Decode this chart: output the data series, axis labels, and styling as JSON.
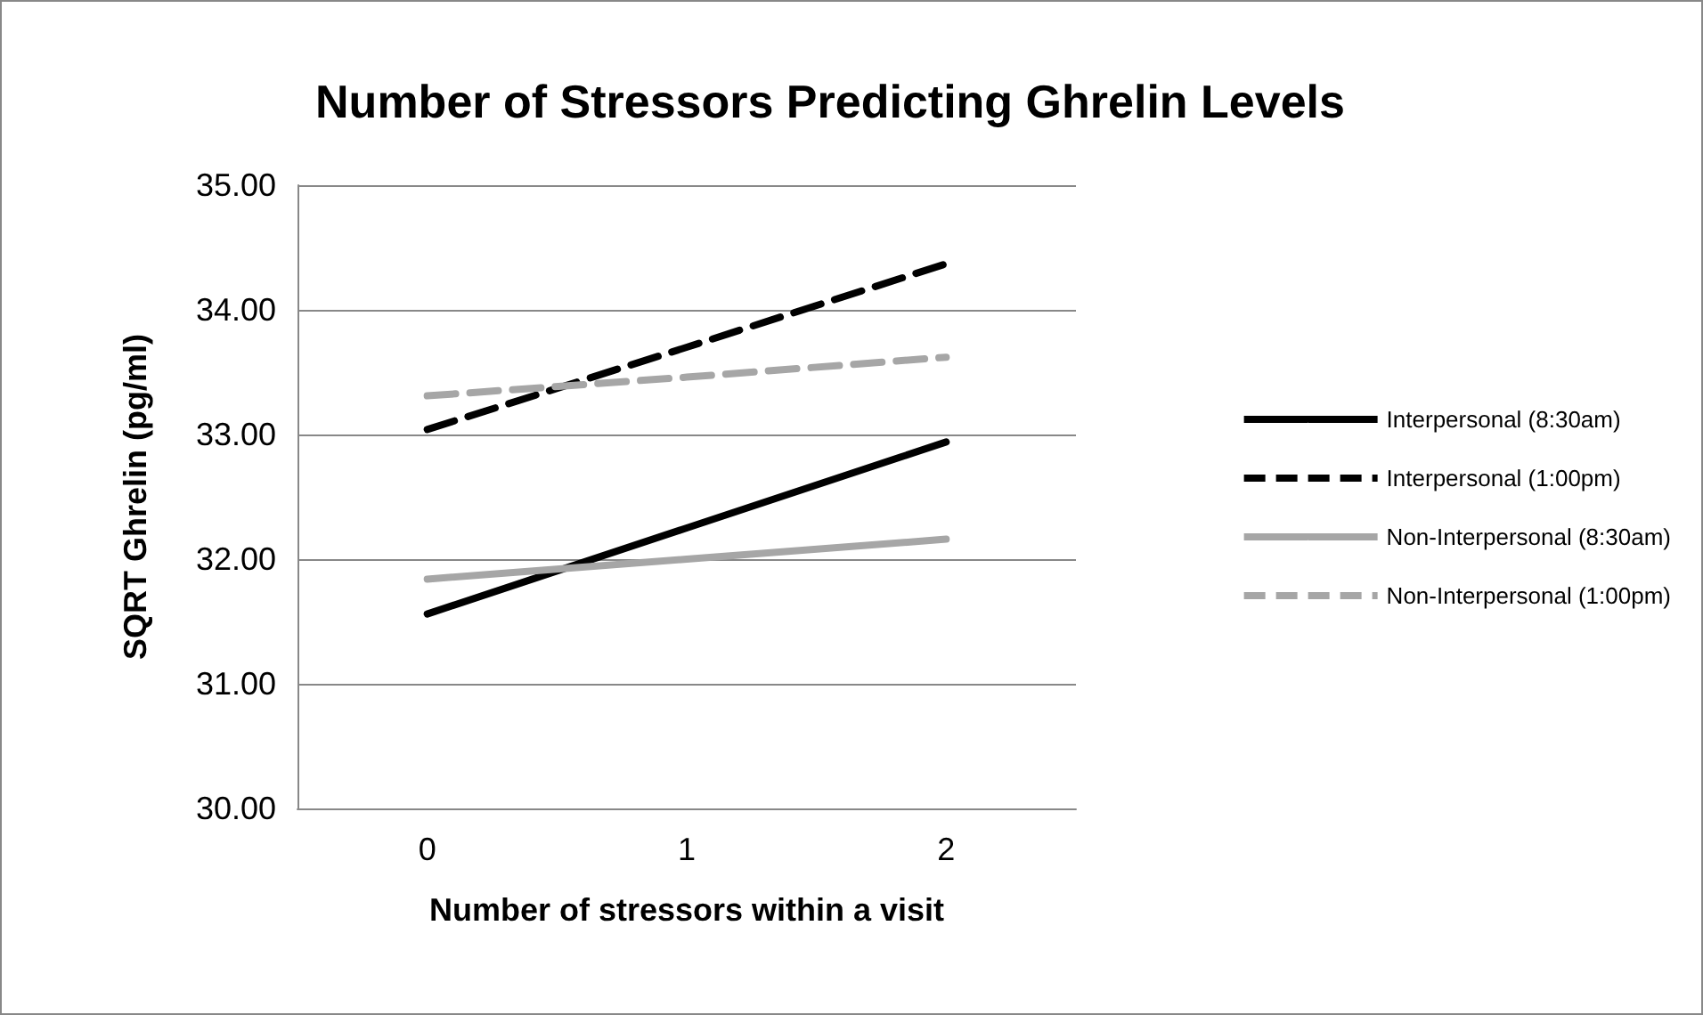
{
  "chart_data": {
    "type": "line",
    "title": "Number of Stressors Predicting Ghrelin Levels",
    "xlabel": "Number of stressors within a visit",
    "ylabel": "SQRT Ghrelin (pg/ml)",
    "categories": [
      "0",
      "1",
      "2"
    ],
    "series": [
      {
        "name": "Interpersonal (8:30am)",
        "color": "#000000",
        "line_style": "solid",
        "values": [
          31.56,
          32.25,
          32.94
        ]
      },
      {
        "name": "Interpersonal (1:00pm)",
        "color": "#000000",
        "line_style": "dashed",
        "values": [
          33.04,
          33.7,
          34.37
        ]
      },
      {
        "name": "Non-Interpersonal (8:30am)",
        "color": "#a6a6a6",
        "line_style": "solid",
        "values": [
          31.84,
          32.0,
          32.16
        ]
      },
      {
        "name": "Non-Interpersonal (1:00pm)",
        "color": "#a6a6a6",
        "line_style": "dashed",
        "values": [
          33.31,
          33.46,
          33.62
        ]
      }
    ],
    "ylim": [
      30,
      35
    ],
    "yticks": [
      {
        "value": 30,
        "label": "30.00"
      },
      {
        "value": 31,
        "label": "31.00"
      },
      {
        "value": 32,
        "label": "32.00"
      },
      {
        "value": 33,
        "label": "33.00"
      },
      {
        "value": 34,
        "label": "34.00"
      },
      {
        "value": 35,
        "label": "35.00"
      }
    ],
    "grid": "y",
    "legend": "right",
    "marker": "none"
  }
}
